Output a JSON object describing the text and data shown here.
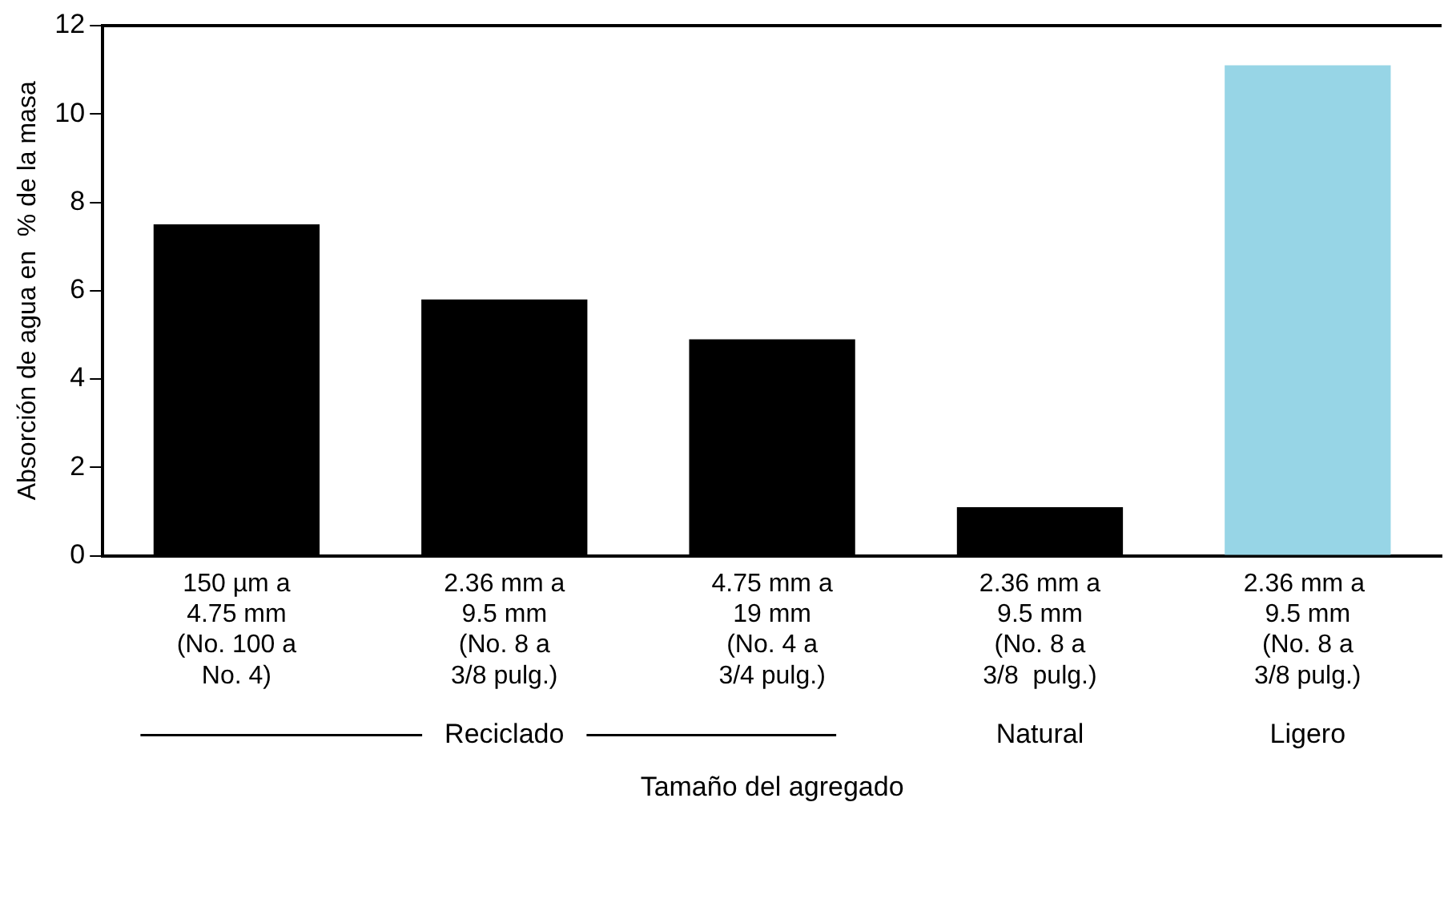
{
  "chart_data": {
    "type": "bar",
    "categories": [
      "150 µm a\n4.75 mm\n(No. 100 a\nNo. 4)",
      "2.36 mm a\n9.5 mm\n(No. 8 a\n3/8 pulg.)",
      "4.75 mm a\n19 mm\n(No. 4 a\n3/4 pulg.)",
      "2.36 mm a\n9.5 mm\n(No. 8 a\n3/8  pulg.)",
      "2.36 mm a \n9.5 mm\n(No. 8 a\n3/8 pulg.)"
    ],
    "values": [
      7.5,
      5.8,
      4.9,
      1.1,
      11.1
    ],
    "colors": [
      "#000000",
      "#000000",
      "#000000",
      "#000000",
      "#97d5e6"
    ],
    "ylim": [
      0,
      12
    ],
    "yticks": [
      0,
      2,
      4,
      6,
      8,
      10,
      12
    ],
    "grid": false,
    "xlabel": "Tamaño del agregado",
    "ylabel": "Absorción de agua en  % de la masa",
    "annotations": [
      "Reciclado",
      "Natural",
      "Ligero"
    ]
  }
}
